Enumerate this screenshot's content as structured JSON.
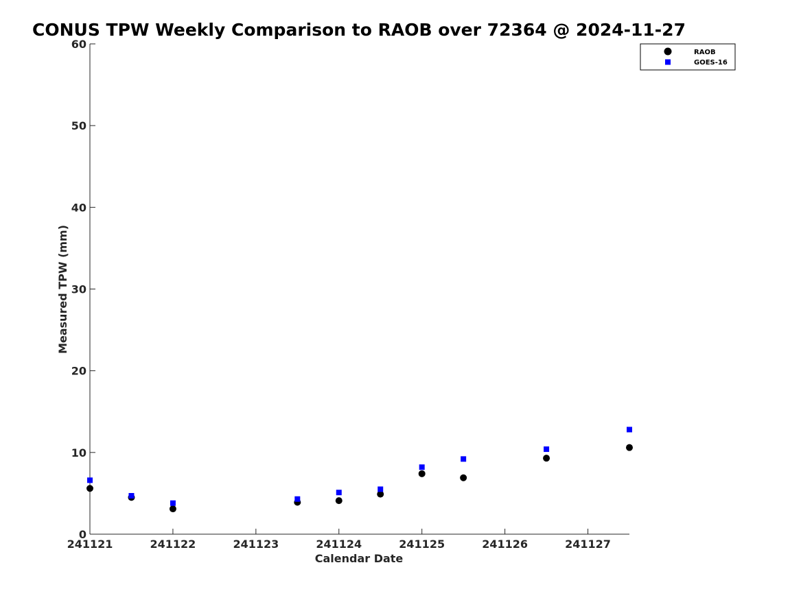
{
  "chart_data": {
    "type": "scatter",
    "title": "CONUS TPW Weekly Comparison to RAOB over 72364 @ 2024-11-27",
    "xlabel": "Calendar Date",
    "ylabel": "Measured TPW (mm)",
    "x_tick_labels": [
      "241121",
      "241122",
      "241123",
      "241124",
      "241125",
      "241126",
      "241127"
    ],
    "y_ticks": [
      0,
      10,
      20,
      30,
      40,
      50,
      60
    ],
    "ylim": [
      0,
      60
    ],
    "xlim": [
      "2024-11-21 00:00",
      "2024-11-27 12:00"
    ],
    "grid": false,
    "legend_position": "top-right",
    "series": [
      {
        "name": "RAOB",
        "marker": "circle",
        "color": "#000000",
        "points": [
          {
            "x": "2024-11-21 00:00",
            "y": 5.6
          },
          {
            "x": "2024-11-21 12:00",
            "y": 4.5
          },
          {
            "x": "2024-11-22 00:00",
            "y": 3.1
          },
          {
            "x": "2024-11-23 12:00",
            "y": 3.9
          },
          {
            "x": "2024-11-24 00:00",
            "y": 4.1
          },
          {
            "x": "2024-11-24 12:00",
            "y": 4.9
          },
          {
            "x": "2024-11-25 00:00",
            "y": 7.4
          },
          {
            "x": "2024-11-25 12:00",
            "y": 6.9
          },
          {
            "x": "2024-11-26 12:00",
            "y": 9.3
          },
          {
            "x": "2024-11-27 12:00",
            "y": 10.6
          }
        ]
      },
      {
        "name": "GOES-16",
        "marker": "square",
        "color": "#0000ff",
        "points": [
          {
            "x": "2024-11-21 00:00",
            "y": 6.6
          },
          {
            "x": "2024-11-21 12:00",
            "y": 4.7
          },
          {
            "x": "2024-11-22 00:00",
            "y": 3.8
          },
          {
            "x": "2024-11-23 12:00",
            "y": 4.3
          },
          {
            "x": "2024-11-24 00:00",
            "y": 5.1
          },
          {
            "x": "2024-11-24 12:00",
            "y": 5.5
          },
          {
            "x": "2024-11-25 00:00",
            "y": 8.2
          },
          {
            "x": "2024-11-25 12:00",
            "y": 9.2
          },
          {
            "x": "2024-11-26 12:00",
            "y": 10.4
          },
          {
            "x": "2024-11-27 12:00",
            "y": 12.8
          }
        ]
      }
    ]
  }
}
